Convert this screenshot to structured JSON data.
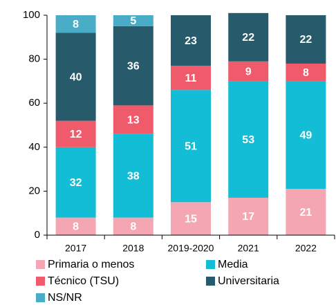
{
  "chart_data": {
    "type": "stacked_bar",
    "categories": [
      "2017",
      "2018",
      "2019-2020",
      "2021",
      "2022"
    ],
    "series": [
      {
        "name": "Primaria o menos",
        "color": "#f4a7b2",
        "values": [
          8,
          8,
          15,
          17,
          21
        ]
      },
      {
        "name": "Media",
        "color": "#13bdd5",
        "values": [
          32,
          38,
          51,
          53,
          49
        ]
      },
      {
        "name": "Técnico (TSU)",
        "color": "#f05b6b",
        "values": [
          12,
          13,
          11,
          9,
          8
        ]
      },
      {
        "name": "Universitaria",
        "color": "#275b6b",
        "values": [
          40,
          36,
          23,
          22,
          22
        ]
      },
      {
        "name": "NS/NR",
        "color": "#4aadc7",
        "values": [
          8,
          5,
          null,
          null,
          null
        ]
      }
    ],
    "ylim": [
      0,
      100
    ],
    "yticks": [
      0,
      20,
      40,
      60,
      80,
      100
    ]
  }
}
